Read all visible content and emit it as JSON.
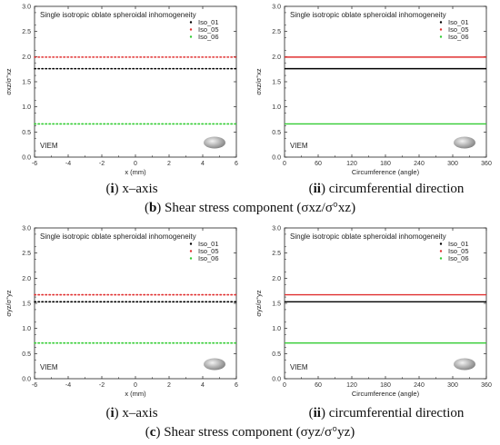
{
  "captions": {
    "row1": {
      "letter": "b",
      "text": "Shear stress component (σxz/σ°xz)"
    },
    "row2": {
      "letter": "c",
      "text": "Shear stress component (σyz/σ°yz)"
    },
    "sub_i": {
      "roman": "i",
      "text": "x–axis"
    },
    "sub_ii": {
      "roman": "ii",
      "text": "circumferential direction"
    }
  },
  "chart_data": [
    {
      "type": "line",
      "title": "Single isotropic oblate spheroidal inhomogeneity",
      "xlabel": "x (mm)",
      "ylabel": "σxz/σ°xz",
      "xlim": [
        -6,
        6
      ],
      "ylim": [
        0,
        3.0
      ],
      "xticks": [
        "-6",
        "-4",
        "-2",
        "0",
        "2",
        "4",
        "6"
      ],
      "yticks": [
        "0.0",
        "0.5",
        "1.0",
        "1.5",
        "2.0",
        "2.5",
        "3.0"
      ],
      "line_style": "dotted",
      "method_label": "VIEM",
      "legend": {
        "position": "top-right"
      },
      "series": [
        {
          "name": "Iso_01",
          "color": "#000000",
          "values": [
            1.76,
            1.76
          ]
        },
        {
          "name": "Iso_05",
          "color": "#e03030",
          "values": [
            1.99,
            1.99
          ]
        },
        {
          "name": "Iso_06",
          "color": "#33cc33",
          "values": [
            0.66,
            0.66
          ]
        }
      ],
      "x": [
        -6,
        6
      ]
    },
    {
      "type": "line",
      "title": "Single isotropic oblate spheroidal inhomogeneity",
      "xlabel": "Circumference (angle)",
      "ylabel": "σxz/σ°xz",
      "xlim": [
        0,
        360
      ],
      "ylim": [
        0,
        3.0
      ],
      "xticks": [
        "0",
        "60",
        "120",
        "180",
        "240",
        "300",
        "360"
      ],
      "yticks": [
        "0.0",
        "0.5",
        "1.0",
        "1.5",
        "2.0",
        "2.5",
        "3.0"
      ],
      "line_style": "solid",
      "method_label": "VIEM",
      "legend": {
        "position": "top-right"
      },
      "series": [
        {
          "name": "Iso_01",
          "color": "#000000",
          "values": [
            1.76,
            1.76
          ]
        },
        {
          "name": "Iso_05",
          "color": "#e03030",
          "values": [
            1.99,
            1.99
          ]
        },
        {
          "name": "Iso_06",
          "color": "#33cc33",
          "values": [
            0.66,
            0.66
          ]
        }
      ],
      "x": [
        0,
        360
      ]
    },
    {
      "type": "line",
      "title": "Single isotropic oblate spheroidal inhomogeneity",
      "xlabel": "x (mm)",
      "ylabel": "σyz/σ°yz",
      "xlim": [
        -6,
        6
      ],
      "ylim": [
        0,
        3.0
      ],
      "xticks": [
        "-6",
        "-4",
        "-2",
        "0",
        "2",
        "4",
        "6"
      ],
      "yticks": [
        "0.0",
        "0.5",
        "1.0",
        "1.5",
        "2.0",
        "2.5",
        "3.0"
      ],
      "line_style": "dotted",
      "method_label": "VIEM",
      "legend": {
        "position": "top-right"
      },
      "series": [
        {
          "name": "Iso_01",
          "color": "#000000",
          "values": [
            1.53,
            1.53
          ]
        },
        {
          "name": "Iso_05",
          "color": "#e03030",
          "values": [
            1.67,
            1.67
          ]
        },
        {
          "name": "Iso_06",
          "color": "#33cc33",
          "values": [
            0.71,
            0.71
          ]
        }
      ],
      "x": [
        -6,
        6
      ]
    },
    {
      "type": "line",
      "title": "Single isotropic oblate spheroidal inhomogeneity",
      "xlabel": "Circumference (angle)",
      "ylabel": "σyz/σ°yz",
      "xlim": [
        0,
        360
      ],
      "ylim": [
        0,
        3.0
      ],
      "xticks": [
        "0",
        "60",
        "120",
        "180",
        "240",
        "300",
        "360"
      ],
      "yticks": [
        "0.0",
        "0.5",
        "1.0",
        "1.5",
        "2.0",
        "2.5",
        "3.0"
      ],
      "line_style": "solid",
      "method_label": "VIEM",
      "legend": {
        "position": "top-right"
      },
      "series": [
        {
          "name": "Iso_01",
          "color": "#000000",
          "values": [
            1.53,
            1.53
          ]
        },
        {
          "name": "Iso_05",
          "color": "#e03030",
          "values": [
            1.67,
            1.67
          ]
        },
        {
          "name": "Iso_06",
          "color": "#33cc33",
          "values": [
            0.71,
            0.71
          ]
        }
      ],
      "x": [
        0,
        360
      ]
    }
  ]
}
